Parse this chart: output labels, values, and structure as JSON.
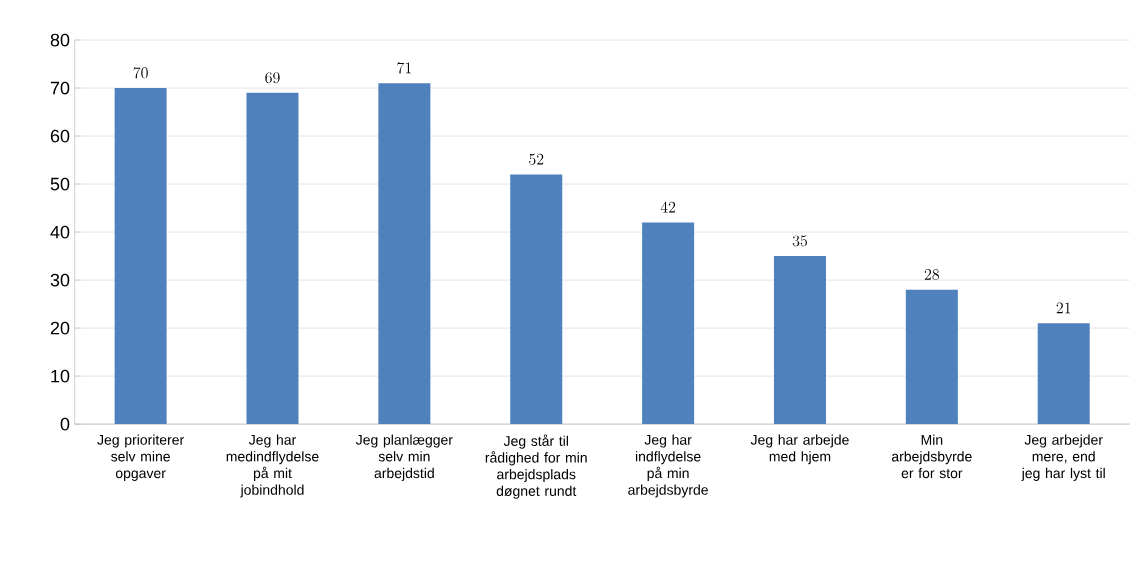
{
  "chart_data": {
    "type": "bar",
    "categories": [
      "Jeg prioriterer selv mine opgaver",
      "Jeg har medindflydelse på mit jobindhold",
      "Jeg planlægger selv min arbejdstid",
      "Jeg står til rådighed for min arbejdsplads døgnet rundt",
      "Jeg har indflydelse på min arbejdsbyrde",
      "Jeg har arbejde med hjem",
      "Min arbejdsbyrde er for stor",
      "Jeg arbejder mere, end jeg har lyst til"
    ],
    "values": [
      70,
      69,
      71,
      52,
      42,
      35,
      28,
      21
    ],
    "color": "#4f81bd",
    "ylim": [
      0,
      80
    ],
    "yticks": [
      0,
      10,
      20,
      30,
      40,
      50,
      60,
      70,
      80
    ],
    "grid": "y",
    "data_labels": true
  }
}
